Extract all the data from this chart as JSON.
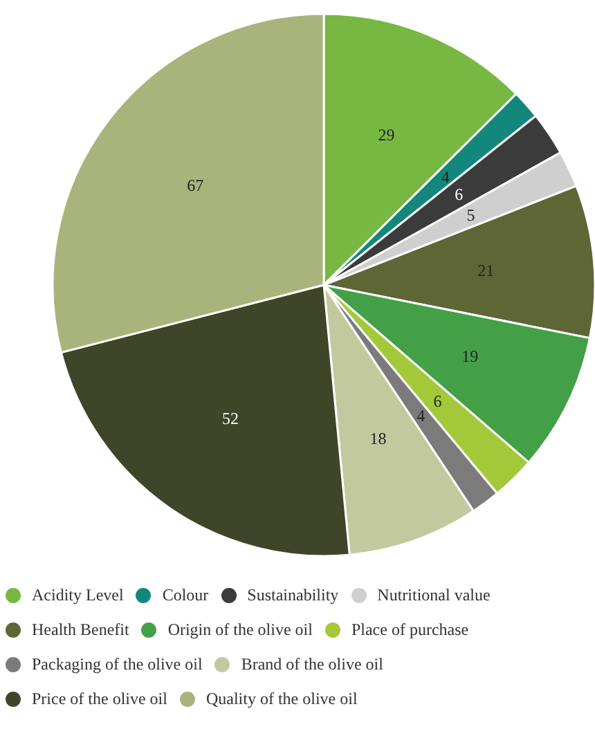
{
  "chart_data": {
    "type": "pie",
    "categories": [
      "Acidity Level",
      "Colour",
      "Sustainability",
      "Nutritional value",
      "Health Benefit",
      "Origin of the olive oil",
      "Place of purchase",
      "Packaging of the olive oil",
      "Brand of the olive oil",
      "Price of the olive oil",
      "Quality of the olive oil"
    ],
    "values": [
      29,
      4,
      6,
      5,
      21,
      19,
      6,
      4,
      18,
      52,
      67
    ],
    "colors": [
      "#77b843",
      "#13877c",
      "#3b3b3b",
      "#cfcfcf",
      "#5e6636",
      "#43a047",
      "#a3c93a",
      "#7b7b7b",
      "#c3c99e",
      "#3f4528",
      "#a9b47c"
    ],
    "data_labels": true,
    "legend": "bottom"
  }
}
